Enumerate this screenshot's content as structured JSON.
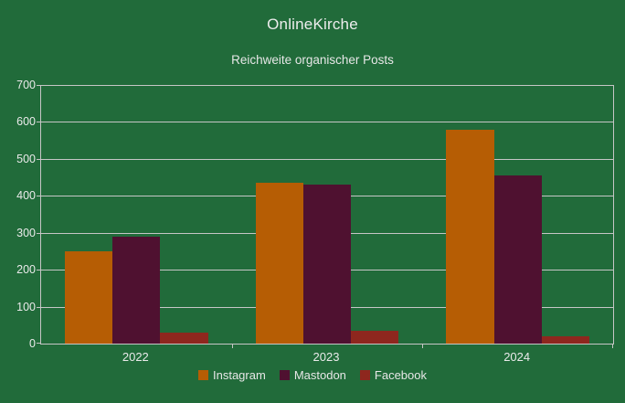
{
  "header": {
    "title": "OnlineKirche",
    "subtitle": "Reichweite organischer Posts"
  },
  "chart_data": {
    "type": "bar",
    "title": "OnlineKirche",
    "subtitle": "Reichweite organischer Posts",
    "categories": [
      "2022",
      "2023",
      "2024"
    ],
    "series": [
      {
        "name": "Instagram",
        "color": "#b65d04",
        "values": [
          250,
          435,
          580
        ]
      },
      {
        "name": "Mastodon",
        "color": "#4f1130",
        "values": [
          290,
          430,
          455
        ]
      },
      {
        "name": "Facebook",
        "color": "#8e271e",
        "values": [
          30,
          35,
          20
        ]
      }
    ],
    "xlabel": "",
    "ylabel": "",
    "ylim": [
      0,
      700
    ],
    "ytick_step": 100,
    "ytick_labels": [
      "0",
      "100",
      "200",
      "300",
      "400",
      "500",
      "600",
      "700"
    ],
    "grid": true,
    "legend_position": "bottom"
  },
  "colors": {
    "background": "#216b3a",
    "grid": "#c6c6c6",
    "text": "#eaeaea",
    "instagram": "#b65d04",
    "mastodon": "#4f1130",
    "facebook": "#8e271e"
  }
}
